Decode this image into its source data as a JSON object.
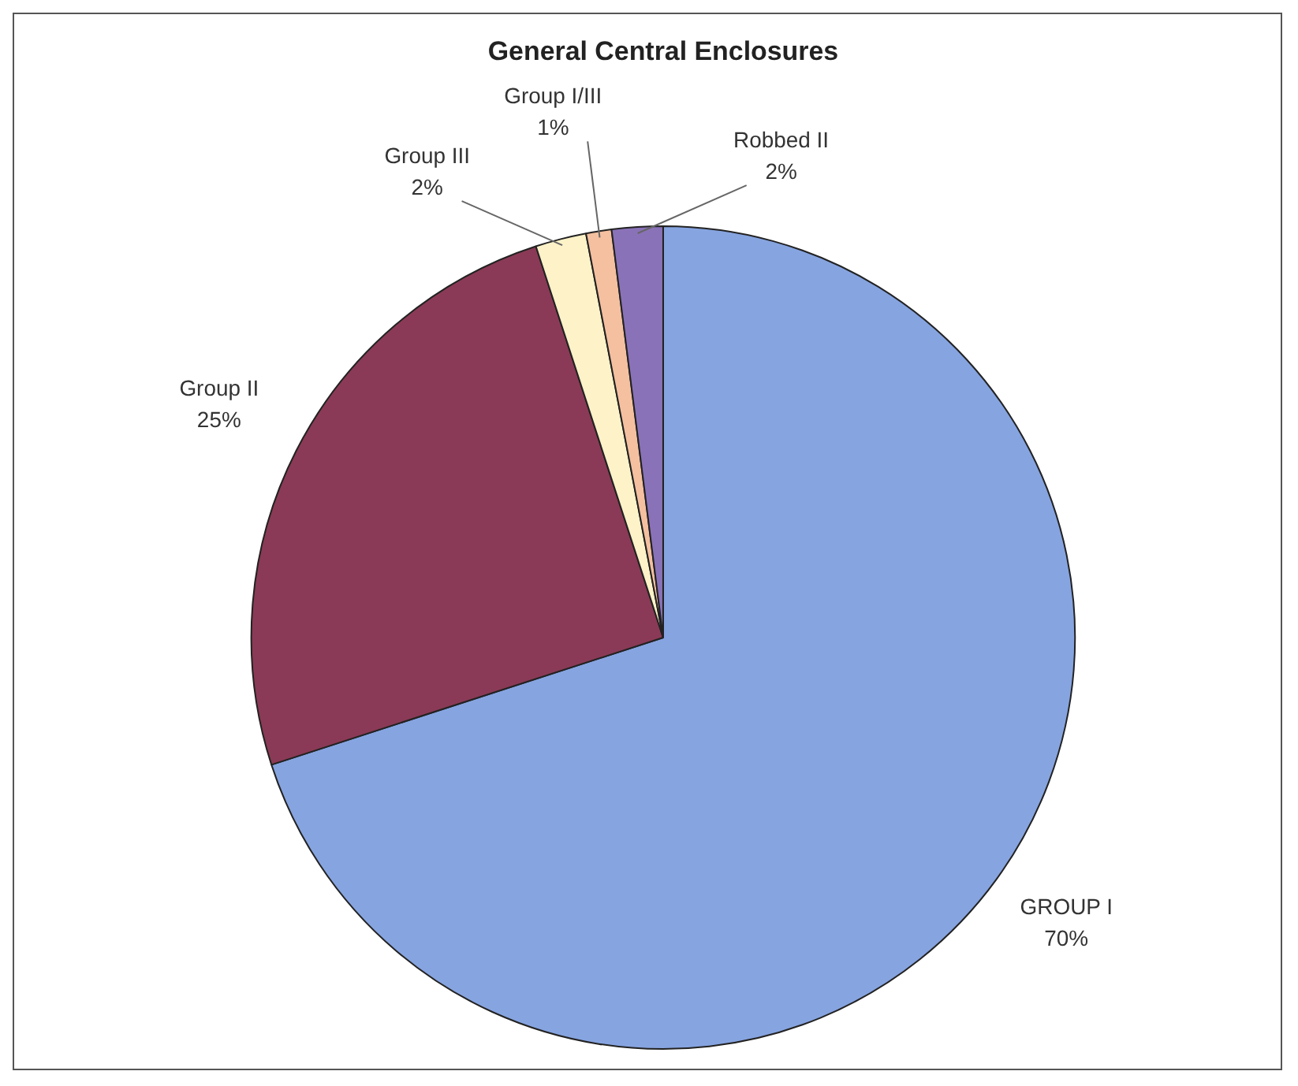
{
  "chart_data": {
    "type": "pie",
    "title": "General Central Enclosures",
    "categories": [
      "GROUP I",
      "Group II",
      "Group III",
      "Group I/III",
      "Robbed II"
    ],
    "values": [
      70,
      25,
      2,
      1,
      2
    ],
    "value_labels": [
      "70%",
      "25%",
      "2%",
      "1%",
      "2%"
    ],
    "colors": [
      "#86a4e0",
      "#8a3a56",
      "#fdf2c8",
      "#f4c0a0",
      "#8a72b8"
    ],
    "legend": false
  }
}
